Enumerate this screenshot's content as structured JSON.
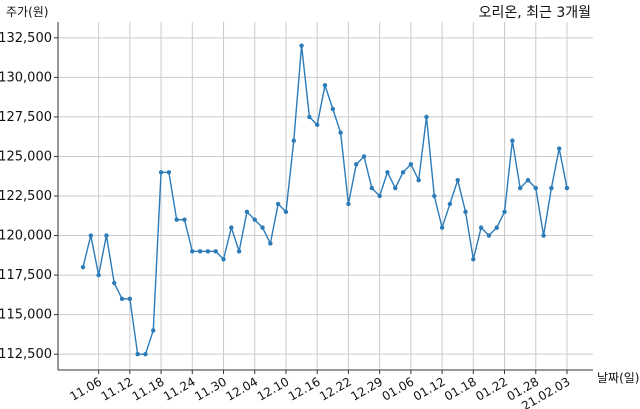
{
  "chart_data": {
    "type": "line",
    "title": "오리온, 최근 3개월",
    "ylabel": "주가(원)",
    "xlabel": "날짜(일)",
    "ylim": [
      111500,
      133500
    ],
    "yticks": [
      112500,
      115000,
      117500,
      120000,
      122500,
      125000,
      127500,
      130000,
      132500
    ],
    "ytick_labels": [
      "112,500",
      "115,000",
      "117,500",
      "120,000",
      "122,500",
      "125,000",
      "127,500",
      "130,000",
      "132,500"
    ],
    "x_tick_labels": [
      "11.06",
      "11.12",
      "11.18",
      "11.24",
      "11.30",
      "12.04",
      "12.10",
      "12.16",
      "12.22",
      "12.29",
      "01.06",
      "01.12",
      "01.18",
      "01.22",
      "01.28",
      "21.02.03"
    ],
    "x_tick_index": [
      2,
      6,
      10,
      14,
      18,
      22,
      26,
      30,
      34,
      38,
      42,
      46,
      50,
      54,
      58,
      62
    ],
    "grid": true,
    "line_color": "#2b7bb9",
    "values": [
      118000,
      120000,
      117500,
      120000,
      117000,
      116000,
      116000,
      112500,
      112500,
      114000,
      124000,
      124000,
      121000,
      121000,
      119000,
      119000,
      119000,
      119000,
      118500,
      120500,
      119000,
      121500,
      121000,
      120500,
      119500,
      122000,
      121500,
      126000,
      132000,
      127500,
      127000,
      129500,
      128000,
      126500,
      122000,
      124500,
      125000,
      123000,
      122500,
      124000,
      123000,
      124000,
      124500,
      123500,
      127500,
      122500,
      120500,
      122000,
      123500,
      121500,
      118500,
      120500,
      120000,
      120500,
      121500,
      126000,
      123000,
      123500,
      123000,
      120000,
      123000,
      125500,
      123000
    ]
  }
}
